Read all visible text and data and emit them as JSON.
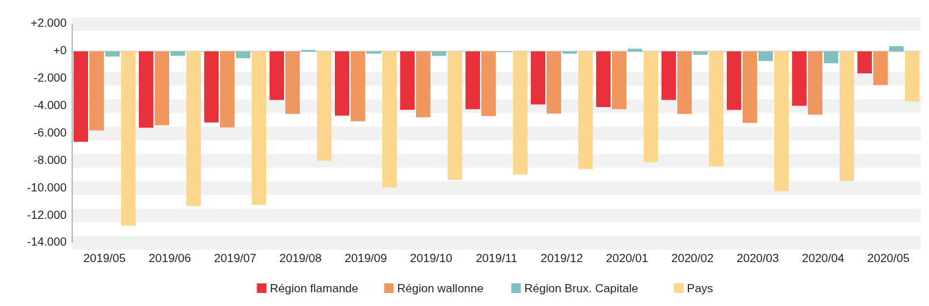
{
  "chart_data": {
    "type": "bar",
    "categories": [
      "2019/05",
      "2019/06",
      "2019/07",
      "2019/08",
      "2019/09",
      "2019/10",
      "2019/11",
      "2019/12",
      "2020/01",
      "2020/02",
      "2020/03",
      "2020/04",
      "2020/05"
    ],
    "series": [
      {
        "name": "Région flamande",
        "color": "#e8313a",
        "values": [
          -6610,
          -5580,
          -5200,
          -3550,
          -4700,
          -4270,
          -4230,
          -3880,
          -4070,
          -3550,
          -4280,
          -3980,
          -1610
        ]
      },
      {
        "name": "Région wallonne",
        "color": "#f0975f",
        "values": [
          -5780,
          -5400,
          -5560,
          -4570,
          -5110,
          -4820,
          -4730,
          -4550,
          -4230,
          -4570,
          -5230,
          -4630,
          -2460
        ]
      },
      {
        "name": "Région Brux. Capitale",
        "color": "#82bfbf",
        "values": [
          -380,
          -330,
          -500,
          110,
          -170,
          -330,
          -50,
          -170,
          200,
          -250,
          -700,
          -870,
          380
        ]
      },
      {
        "name": "Pays",
        "color": "#fdd68e",
        "values": [
          -12750,
          -11310,
          -11220,
          -8000,
          -9960,
          -9400,
          -9010,
          -8600,
          -8100,
          -8390,
          -10210,
          -9480,
          -3670
        ]
      }
    ],
    "ylim": [
      -14000,
      2000
    ],
    "yticks": [
      {
        "value": 2000,
        "label": "+2.000"
      },
      {
        "value": 0,
        "label": "+0"
      },
      {
        "value": -2000,
        "label": "-2.000"
      },
      {
        "value": -4000,
        "label": "-4.000"
      },
      {
        "value": -6000,
        "label": "-6.000"
      },
      {
        "value": -8000,
        "label": "-8.000"
      },
      {
        "value": -10000,
        "label": "-10.000"
      },
      {
        "value": -12000,
        "label": "-12.000"
      },
      {
        "value": -14000,
        "label": "-14.000"
      }
    ],
    "grid": "y",
    "legend": "bottom"
  }
}
